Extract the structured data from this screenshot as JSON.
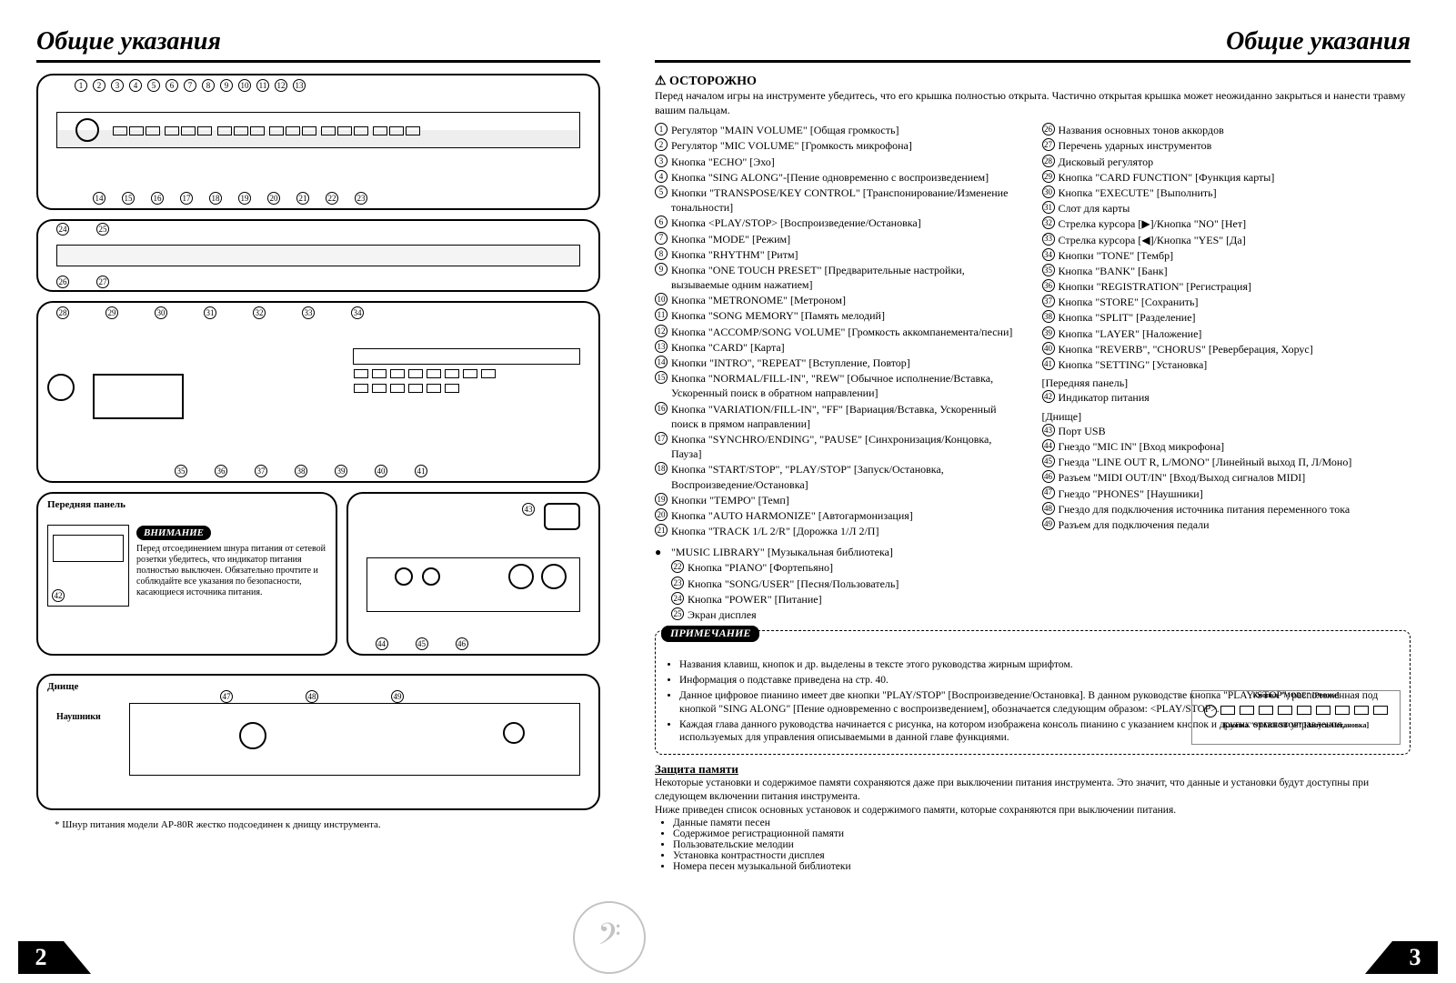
{
  "heading": "Общие указания",
  "left": {
    "panel_d_label": "Передняя панель",
    "callout_title": "ВНИМАНИЕ",
    "callout_text": "Перед отсоединением шну­ра питания от сетевой розет­ки убедитесь, что индикатор питания полностью выклю­чен. Обязательно прочтите и соблюдайте все указания по безопасности, касающиеся источника питания.",
    "panel_f_label": "Днище",
    "sub_label": "Наушники",
    "footnote": "* Шнур питания модели AP-80R жестко подсоединен к днищу инструмента.",
    "page_num": "2",
    "top_nums": [
      "1",
      "2",
      "3",
      "4",
      "5",
      "6",
      "7",
      "8",
      "9",
      "10",
      "11",
      "12",
      "13"
    ],
    "bot_nums": [
      "14",
      "15",
      "16",
      "17",
      "18",
      "19",
      "20",
      "21",
      "22",
      "23"
    ],
    "b_nums_l": [
      "24",
      "25"
    ],
    "b_nums_r": [
      "26",
      "27"
    ],
    "c_top": [
      "28",
      "29",
      "30",
      "31",
      "32",
      "33",
      "34"
    ],
    "c_bot": [
      "35",
      "36",
      "37",
      "38",
      "39",
      "40",
      "41"
    ],
    "e_nums": [
      "43",
      "44",
      "45",
      "46"
    ],
    "f_nums": [
      "47",
      "48",
      "49"
    ],
    "d_num": "42"
  },
  "right": {
    "page_num": "3",
    "caution_label": "⚠ ОСТОРОЖНО",
    "caution_text": "Перед началом игры на инструменте убедитесь, что его крышка полностью открыта. Частично открытая крышка может неожиданно закрыться и нанести травму вашим пальцам.",
    "col1": [
      {
        "n": "1",
        "t": "Регулятор \"MAIN VOLUME\" [Общая громкость]"
      },
      {
        "n": "2",
        "t": "Регулятор \"MIC VOLUME\" [Громкость микрофона]"
      },
      {
        "n": "3",
        "t": "Кнопка \"ECHO\" [Эхо]"
      },
      {
        "n": "4",
        "t": "Кнопка \"SING ALONG\"-[Пение одновременно с воспроизведением]"
      },
      {
        "n": "5",
        "t": "Кнопки \"TRANSPOSE/KEY CONTROL\" [Транс­понирование/Изменение тональности]"
      },
      {
        "n": "6",
        "t": "Кнопка <PLAY/STOP> [Воспроизведение/Остановка]"
      },
      {
        "n": "7",
        "t": "Кнопка \"MODE\" [Режим]"
      },
      {
        "n": "8",
        "t": "Кнопка \"RHYTHM\" [Ритм]"
      },
      {
        "n": "9",
        "t": "Кнопка \"ONE TOUCH PRESET\" [Предваритель­ные настройки, вызываемые одним нажатием]"
      },
      {
        "n": "10",
        "t": "Кнопка \"METRONOME\" [Метроном]"
      },
      {
        "n": "11",
        "t": "Кнопка \"SONG MEMORY\" [Память мелодий]"
      },
      {
        "n": "12",
        "t": "Кнопка \"ACCOMP/SONG VOLUME\" [Громкость аккомпанемента/песни]"
      },
      {
        "n": "13",
        "t": "Кнопка \"CARD\" [Карта]"
      },
      {
        "n": "14",
        "t": "Кнопки \"INTRO\", \"REPEAT\" [Вступление, Повтор]"
      },
      {
        "n": "15",
        "t": "Кнопка \"NORMAL/FILL-IN\", \"REW\" [Обычное исполнение/Вставка, Ускоренный поиск в обрат­ном направлении]"
      },
      {
        "n": "16",
        "t": "Кнопка \"VARIATION/FILL-IN\", \"FF\" [Вариа­ция/Вставка, Ускоренный поиск в прямом на­правлении]"
      },
      {
        "n": "17",
        "t": "Кнопка \"SYNCHRO/ENDING\", \"PAUSE\" [Син­хронизация/Концовка, Пауза]"
      },
      {
        "n": "18",
        "t": "Кнопка \"START/STOP\", \"PLAY/STOP\" [За­пуск/Остановка, Воспроизведение/Остановка]"
      },
      {
        "n": "19",
        "t": "Кнопки \"TEMPO\" [Темп]"
      },
      {
        "n": "20",
        "t": "Кнопка \"AUTO HARMONIZE\" [Автогармонизация]"
      },
      {
        "n": "21",
        "t": "Кнопка \"TRACK 1/L 2/R\" [Дорожка 1/Л 2/П]"
      }
    ],
    "col1_bullets": [
      {
        "b": "●",
        "t": "\"MUSIC LIBRARY\" [Музыкальная библиотека]"
      },
      {
        "n": "22",
        "t": "Кнопка \"PIANO\" [Фортепьяно]"
      },
      {
        "n": "23",
        "t": "Кнопка \"SONG/USER\" [Песня/Пользователь]"
      },
      {
        "n": "24",
        "t": "Кнопка \"POWER\" [Питание]"
      },
      {
        "n": "25",
        "t": "Экран дисплея"
      }
    ],
    "col2": [
      {
        "n": "26",
        "t": "Названия основных тонов аккордов"
      },
      {
        "n": "27",
        "t": "Перечень ударных инструментов"
      },
      {
        "n": "28",
        "t": "Дисковый регулятор"
      },
      {
        "n": "29",
        "t": "Кнопка \"CARD FUNCTION\" [Функция карты]"
      },
      {
        "n": "30",
        "t": "Кнопка \"EXECUTE\" [Выполнить]"
      },
      {
        "n": "31",
        "t": "Слот для карты"
      },
      {
        "n": "32",
        "t": "Стрелка курсора [▶]/Кнопка \"NO\" [Нет]"
      },
      {
        "n": "33",
        "t": "Стрелка курсора [◀]/Кнопка \"YES\" [Да]"
      },
      {
        "n": "34",
        "t": "Кнопки \"TONE\" [Тембр]"
      },
      {
        "n": "35",
        "t": "Кнопка \"BANK\" [Банк]"
      },
      {
        "n": "36",
        "t": "Кнопки \"REGISTRATION\" [Регистрация]"
      },
      {
        "n": "37",
        "t": "Кнопка \"STORE\" [Сохранить]"
      },
      {
        "n": "38",
        "t": "Кнопка \"SPLIT\" [Разделение]"
      },
      {
        "n": "39",
        "t": "Кнопка \"LAYER\" [Наложение]"
      },
      {
        "n": "40",
        "t": "Кнопка \"REVERB\", \"CHORUS\" [Реверберация, Хорус]"
      },
      {
        "n": "41",
        "t": "Кнопка \"SETTING\" [Установка]"
      }
    ],
    "col2_front_label": "[Передняя панель]",
    "col2_front": [
      {
        "n": "42",
        "t": "Индикатор питания"
      }
    ],
    "col2_bottom_label": "[Днище]",
    "col2_bottom": [
      {
        "n": "43",
        "t": "Порт USB"
      },
      {
        "n": "44",
        "t": "Гнездо \"MIC IN\" [Вход микрофона]"
      },
      {
        "n": "45",
        "t": "Гнезда \"LINE OUT R, L/MONO\" [Линейный выход П, Л/Моно]"
      },
      {
        "n": "46",
        "t": "Разъем \"MIDI OUT/IN\" [Вход/Выход сигналов MIDI]"
      },
      {
        "n": "47",
        "t": "Гнездо \"PHONES\" [Наушники]"
      },
      {
        "n": "48",
        "t": "Гнездо для подключения источника питания пере­менного тока"
      },
      {
        "n": "49",
        "t": "Разъем для подключения педали"
      }
    ],
    "note_title": "ПРИМЕЧАНИЕ",
    "note_items": [
      "Названия клавиш, кнопок и др. выделены в тексте этого руководства жирным шрифтом.",
      "Информация о подставке приведена на стр. 40.",
      "Данное цифровое пианино имеет две кнопки \"PLAY/STOP\" [Воспроизведение/Остановка]. В данном руководстве кнопка \"PLAY/STOP\", расположенная под кнопкой \"SING ALONG\" [Пение одновременно с воспроизведением], обозначается следующим образом: <PLAY/STOP>.",
      "Каждая глава данного руководства начинается с рисунка, на котором изображена консоль пианино с указанием кнопок и других органов управления, используемых для управления описываемыми в данной главе функциями."
    ],
    "mini_top": "Кнопка \"MODE\" [Режим]",
    "mini_bot": "Кнопка \"START/STOP\" [Запуск/Остановка]",
    "mem_title": "Защита памяти",
    "mem_text": "Некоторые установки и содержимое памяти сохраняются даже при выключении питания инструмента. Это значит, что данные и установки будут доступны при следующем включении питания инструмента.\nНиже приведен список основных установок и содержимого памяти, которые сохраняются при выключении питания.",
    "mem_items": [
      "Данные памяти песен",
      "Содержимое регистрационной памяти",
      "Пользовательские мелодии",
      "Установка контрастности дисплея",
      "Номера песен музыкальной библиотеки"
    ]
  }
}
